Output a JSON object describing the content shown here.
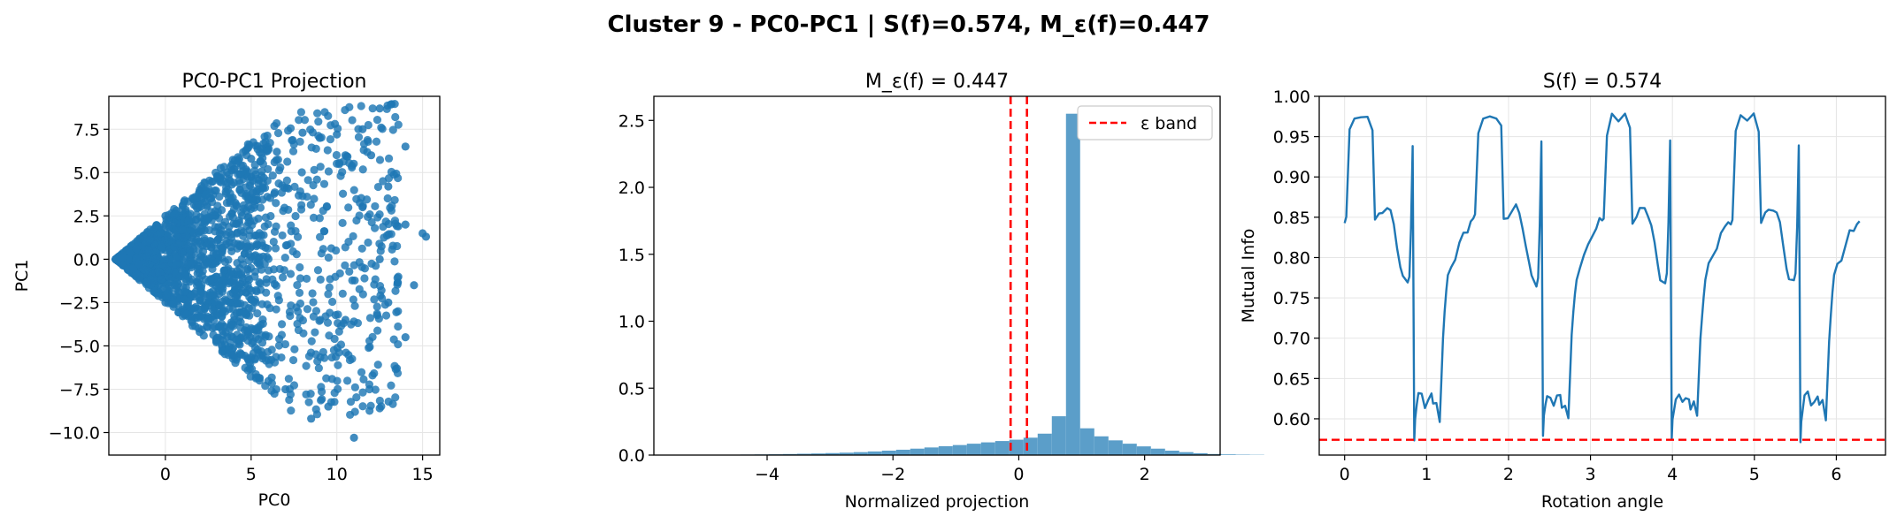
{
  "figure": {
    "suptitle": "Cluster 9 - PC0-PC1 | S(f)=0.574, M_ε(f)=0.447"
  },
  "colors": {
    "series": "#1f77b4",
    "hist": "#5b9ec9",
    "reference": "#ff0000",
    "grid": "#e5e5e5"
  },
  "chart_data": [
    {
      "type": "scatter",
      "title": "PC0-PC1 Projection",
      "xlabel": "PC0",
      "ylabel": "PC1",
      "xlim": [
        -3.3,
        16
      ],
      "ylim": [
        -11.3,
        9.4
      ],
      "xticks": [
        0,
        5,
        10,
        15
      ],
      "yticks": [
        -10.0,
        -7.5,
        -5.0,
        -2.5,
        0.0,
        2.5,
        5.0,
        7.5
      ],
      "xticklabels": [
        "0",
        "5",
        "10",
        "15"
      ],
      "yticklabels": [
        "−10.0",
        "−7.5",
        "−5.0",
        "−2.5",
        "0.0",
        "2.5",
        "5.0",
        "7.5"
      ],
      "grid": true,
      "description_points": [
        [
          -2.9,
          0.0
        ],
        [
          -1.5,
          1.2
        ],
        [
          -1.5,
          -1.2
        ],
        [
          0.0,
          2.5
        ],
        [
          0.0,
          -2.5
        ],
        [
          2.0,
          4.0
        ],
        [
          2.0,
          -4.2
        ],
        [
          4.0,
          5.2
        ],
        [
          4.0,
          -5.5
        ],
        [
          5.0,
          5.8
        ],
        [
          6.5,
          6.2
        ],
        [
          7.0,
          -7.5
        ],
        [
          8.0,
          7.3
        ],
        [
          8.5,
          -9.2
        ],
        [
          9.0,
          7.0
        ],
        [
          9.5,
          -8.5
        ],
        [
          10.0,
          7.2
        ],
        [
          10.5,
          6.0
        ],
        [
          11.0,
          -10.3
        ],
        [
          11.5,
          7.5
        ],
        [
          12.0,
          6.0
        ],
        [
          12.5,
          8.7
        ],
        [
          12.5,
          -8.6
        ],
        [
          13.0,
          4.2
        ],
        [
          13.5,
          -6.3
        ],
        [
          14.0,
          6.5
        ],
        [
          14.0,
          2.0
        ],
        [
          14.5,
          -1.5
        ],
        [
          15.0,
          1.5
        ],
        [
          15.2,
          1.3
        ],
        [
          14.0,
          -4.5
        ],
        [
          13.0,
          -2.5
        ],
        [
          11.5,
          3.0
        ],
        [
          12.5,
          0.0
        ],
        [
          10.5,
          -3.5
        ]
      ]
    },
    {
      "type": "bar",
      "title": "M_ε(f) = 0.447",
      "xlabel": "Normalized projection",
      "ylabel": "",
      "xlim": [
        -5.8,
        3.2
      ],
      "ylim": [
        0,
        2.68
      ],
      "xticks": [
        -4,
        -2,
        0,
        2
      ],
      "yticks": [
        0.0,
        0.5,
        1.0,
        1.5,
        2.0,
        2.5
      ],
      "xticklabels": [
        "−4",
        "−2",
        "0",
        "2"
      ],
      "yticklabels": [
        "0.0",
        "0.5",
        "1.0",
        "1.5",
        "2.0",
        "2.5"
      ],
      "bin_width": 0.225,
      "bin_start": -5.55,
      "values": [
        0.001,
        0.001,
        0.002,
        0.002,
        0.003,
        0.004,
        0.005,
        0.006,
        0.008,
        0.01,
        0.012,
        0.015,
        0.018,
        0.022,
        0.027,
        0.033,
        0.04,
        0.048,
        0.057,
        0.066,
        0.075,
        0.085,
        0.095,
        0.105,
        0.115,
        0.13,
        0.16,
        0.29,
        2.55,
        0.2,
        0.14,
        0.11,
        0.085,
        0.065,
        0.048,
        0.033,
        0.022,
        0.014,
        0.008,
        0.005,
        0.003,
        0.002
      ],
      "reference_lines": [
        {
          "x": -0.13,
          "name": "ε band"
        },
        {
          "x": 0.13,
          "name": "ε band"
        }
      ],
      "legend": {
        "label": "ε band",
        "position": "top-right"
      },
      "grid": false
    },
    {
      "type": "line",
      "title": "S(f) = 0.574",
      "xlabel": "Rotation angle",
      "ylabel": "Mutual Info",
      "xlim": [
        -0.31,
        6.6
      ],
      "ylim": [
        0.555,
        1.0
      ],
      "xticks": [
        0,
        1,
        2,
        3,
        4,
        5,
        6
      ],
      "yticks": [
        0.6,
        0.65,
        0.7,
        0.75,
        0.8,
        0.85,
        0.9,
        0.95,
        1.0
      ],
      "xticklabels": [
        "0",
        "1",
        "2",
        "3",
        "4",
        "5",
        "6"
      ],
      "yticklabels": [
        "0.60",
        "0.65",
        "0.70",
        "0.75",
        "0.80",
        "0.85",
        "0.90",
        "0.95",
        "1.00"
      ],
      "reference_line": {
        "y": 0.574
      },
      "grid": true,
      "period": 1.5708,
      "segment_template": {
        "x": [
          0.0,
          0.02,
          0.06,
          0.12,
          0.2,
          0.28,
          0.34,
          0.37,
          0.42,
          0.46,
          0.52,
          0.56,
          0.6,
          0.64,
          0.68,
          0.71,
          0.77,
          0.79,
          0.81,
          0.83,
          0.84,
          0.85,
          0.86,
          0.88,
          0.9,
          0.94,
          0.98,
          1.02,
          1.06,
          1.08,
          1.12,
          1.16,
          1.2,
          1.22,
          1.24,
          1.26,
          1.3,
          1.35,
          1.4,
          1.45,
          1.5,
          1.54,
          1.5708
        ],
        "y": [
          0.845,
          0.85,
          0.955,
          0.975,
          0.972,
          0.976,
          0.96,
          0.845,
          0.852,
          0.858,
          0.862,
          0.855,
          0.84,
          0.815,
          0.79,
          0.775,
          0.768,
          0.778,
          0.84,
          0.942,
          0.76,
          0.575,
          0.6,
          0.615,
          0.628,
          0.63,
          0.617,
          0.625,
          0.628,
          0.615,
          0.62,
          0.6,
          0.7,
          0.73,
          0.755,
          0.775,
          0.79,
          0.8,
          0.815,
          0.83,
          0.835,
          0.845,
          0.845
        ]
      }
    }
  ]
}
